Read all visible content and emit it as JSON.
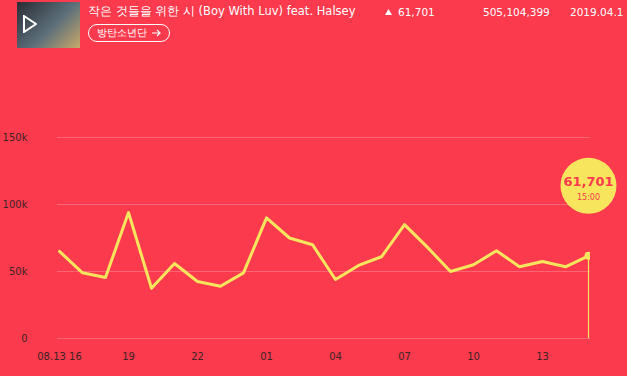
{
  "chart_data": {
    "type": "line",
    "title": "작은 것들을 위한 시 (Boy With Luv) feat. Halsey",
    "artist": "방탄소년단",
    "change": "61,701",
    "total": "505,104,399",
    "date": "2019.04.1",
    "categories": [
      "08.13 16",
      null,
      null,
      "19",
      null,
      null,
      "22",
      null,
      null,
      "01",
      null,
      null,
      "04",
      null,
      null,
      "07",
      null,
      null,
      "10",
      null,
      null,
      "13",
      null,
      null
    ],
    "values": [
      65000,
      49000,
      45500,
      94000,
      37500,
      56000,
      42500,
      39000,
      49000,
      90000,
      75000,
      70000,
      44000,
      54500,
      61000,
      85000,
      68000,
      50000,
      55000,
      65500,
      53500,
      57500,
      53500,
      61701
    ],
    "color": "#f7e55e",
    "ylim": [
      0,
      150000
    ],
    "yticks": [
      0,
      {
        "value": 50000,
        "label": "50k"
      },
      {
        "value": 100000,
        "label": "100k"
      },
      {
        "value": 150000,
        "label": "150k"
      }
    ],
    "grid": true,
    "annotation": {
      "label": "61,701",
      "time": "15:00"
    }
  }
}
